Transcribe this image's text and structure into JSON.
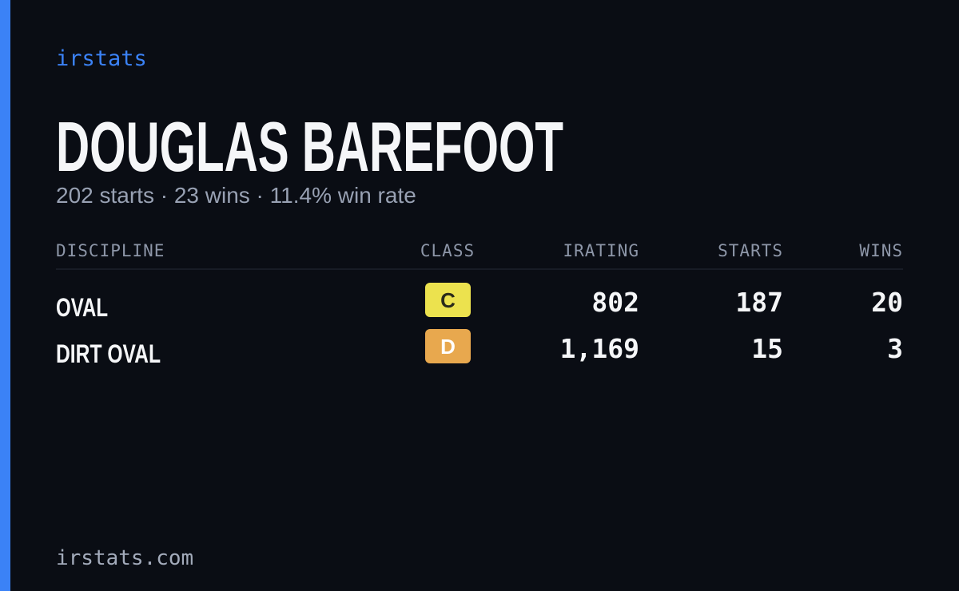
{
  "brand": "irstats",
  "header": {
    "title": "DOUGLAS BAREFOOT",
    "subtitle": "202 starts · 23 wins · 11.4% win rate"
  },
  "table": {
    "columns": [
      "DISCIPLINE",
      "CLASS",
      "IRATING",
      "STARTS",
      "WINS"
    ],
    "rows": [
      [
        "OVAL",
        "C",
        "802",
        "187",
        "20"
      ],
      [
        "DIRT OVAL",
        "D",
        "1,169",
        "15",
        "3"
      ]
    ]
  },
  "footer": "irstats.com"
}
